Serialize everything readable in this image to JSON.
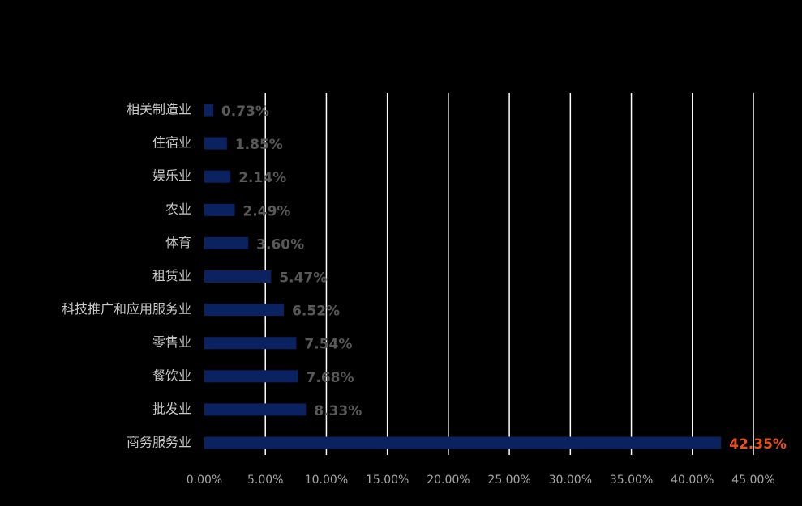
{
  "chart_data": {
    "type": "bar",
    "orientation": "horizontal",
    "categories": [
      "相关制造业",
      "住宿业",
      "娱乐业",
      "农业",
      "体育",
      "租赁业",
      "科技推广和应用服务业",
      "零售业",
      "餐饮业",
      "批发业",
      "商务服务业"
    ],
    "values": [
      0.73,
      1.85,
      2.14,
      2.49,
      3.6,
      5.47,
      6.52,
      7.54,
      7.68,
      8.33,
      42.35
    ],
    "value_labels": [
      "0.73%",
      "1.85%",
      "2.14%",
      "2.49%",
      "3.60%",
      "5.47%",
      "6.52%",
      "7.54%",
      "7.68%",
      "8.33%",
      "42.35%"
    ],
    "value_label_colors": [
      "#595959",
      "#595959",
      "#595959",
      "#595959",
      "#595959",
      "#595959",
      "#595959",
      "#595959",
      "#595959",
      "#595959",
      "#e8501c"
    ],
    "color": "#0b2260",
    "xlim": [
      0,
      45
    ],
    "xticks": [
      {
        "value": 0,
        "label": "0.00%"
      },
      {
        "value": 5,
        "label": "5.00%"
      },
      {
        "value": 10,
        "label": "10.00%"
      },
      {
        "value": 15,
        "label": "15.00%"
      },
      {
        "value": 20,
        "label": "20.00%"
      },
      {
        "value": 25,
        "label": "25.00%"
      },
      {
        "value": 30,
        "label": "30.00%"
      },
      {
        "value": 35,
        "label": "35.00%"
      },
      {
        "value": 40,
        "label": "40.00%"
      },
      {
        "value": 45,
        "label": "45.00%"
      }
    ],
    "grid": true
  }
}
